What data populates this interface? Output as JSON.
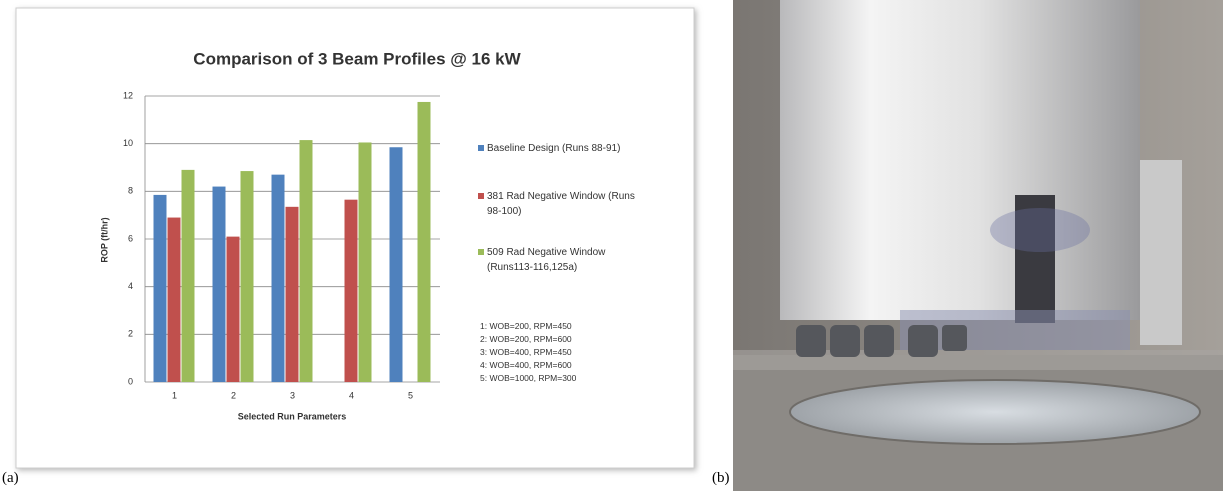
{
  "chart_data": {
    "type": "bar",
    "title": "Comparison of 3 Beam Profiles @ 16 kW",
    "x_label": "Selected Run Parameters",
    "y_label": "ROP (ft/hr)",
    "categories": [
      "1",
      "2",
      "3",
      "4",
      "5"
    ],
    "series": [
      {
        "name": "Baseline Design (Runs 88-91)",
        "color": "#4f81bd",
        "values": [
          7.85,
          8.2,
          8.7,
          null,
          9.85
        ]
      },
      {
        "name": "381 Rad Negative Window (Runs 98-100)",
        "color": "#c0504d",
        "values": [
          6.9,
          6.1,
          7.35,
          7.65,
          null
        ]
      },
      {
        "name": "509 Rad Negative Window (Runs113-116,125a)",
        "color": "#9bbb59",
        "values": [
          8.9,
          8.85,
          10.15,
          10.05,
          11.75
        ]
      }
    ],
    "ylim": [
      0,
      12
    ],
    "yticks": [
      0,
      2,
      4,
      6,
      8,
      10,
      12
    ],
    "grid": true,
    "legend": "right",
    "annotations": [
      "1: WOB=200, RPM=450",
      "2: WOB=200, RPM=600",
      "3: WOB=400, RPM=450",
      "4: WOB=400, RPM=600",
      "5: WOB=1000, RPM=300"
    ]
  },
  "panel_labels": [
    "(a)",
    "(b)"
  ]
}
